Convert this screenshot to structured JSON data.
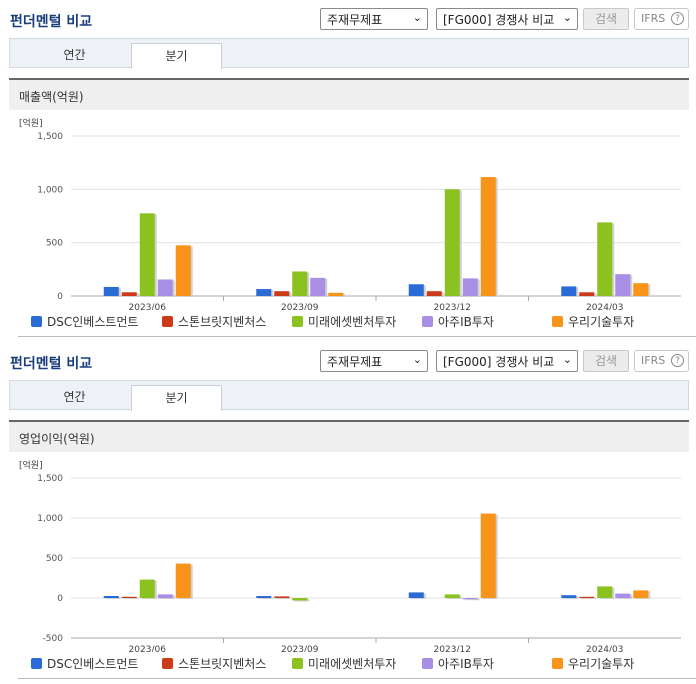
{
  "panels": [
    {
      "title": "펀더멘털 비교",
      "select1": "주재무제표",
      "select2": "[FG000] 경쟁사 비교",
      "search_label": "검색",
      "ifrs_label": "IFRS",
      "help_label": "?",
      "tabs": [
        "연간",
        "분기"
      ],
      "active_tab": "분기",
      "section_title": "매출액(억원)",
      "chart_data": {
        "type": "bar",
        "unit_label": "[억원]",
        "categories": [
          "2023/06",
          "2023/09",
          "2023/12",
          "2024/03"
        ],
        "ylim": [
          0,
          1500
        ],
        "yticks": [
          0,
          500,
          1000,
          1500
        ],
        "ytick_labels": [
          "0",
          "500",
          "1,000",
          "1,500"
        ],
        "grid": true,
        "legend_position": "bottom",
        "series": [
          {
            "name": "DSC인베스트먼트",
            "color": "#2b6bd6",
            "values": [
              85,
              65,
              110,
              90
            ]
          },
          {
            "name": "스톤브릿지벤처스",
            "color": "#cc3a1a",
            "values": [
              35,
              45,
              45,
              35
            ]
          },
          {
            "name": "미래에셋벤처투자",
            "color": "#8cc21f",
            "values": [
              775,
              230,
              1000,
              690
            ]
          },
          {
            "name": "아주IB투자",
            "color": "#a98ee6",
            "values": [
              155,
              170,
              165,
              205
            ]
          },
          {
            "name": "우리기술투자",
            "color": "#f79419",
            "values": [
              475,
              30,
              1115,
              120
            ]
          }
        ]
      }
    },
    {
      "title": "펀더멘털 비교",
      "select1": "주재무제표",
      "select2": "[FG000] 경쟁사 비교",
      "search_label": "검색",
      "ifrs_label": "IFRS",
      "help_label": "?",
      "tabs": [
        "연간",
        "분기"
      ],
      "active_tab": "분기",
      "section_title": "영업이익(억원)",
      "chart_data": {
        "type": "bar",
        "unit_label": "[억원]",
        "categories": [
          "2023/06",
          "2023/09",
          "2023/12",
          "2024/03"
        ],
        "ylim": [
          -500,
          1500
        ],
        "yticks": [
          -500,
          0,
          500,
          1000,
          1500
        ],
        "ytick_labels": [
          "-500",
          "0",
          "500",
          "1,000",
          "1,500"
        ],
        "grid": true,
        "legend_position": "bottom",
        "series": [
          {
            "name": "DSC인베스트먼트",
            "color": "#2b6bd6",
            "values": [
              25,
              25,
              70,
              35
            ]
          },
          {
            "name": "스톤브릿지벤처스",
            "color": "#cc3a1a",
            "values": [
              15,
              20,
              0,
              15
            ]
          },
          {
            "name": "미래에셋벤처투자",
            "color": "#8cc21f",
            "values": [
              230,
              -30,
              45,
              145
            ]
          },
          {
            "name": "아주IB투자",
            "color": "#a98ee6",
            "values": [
              45,
              0,
              -15,
              55
            ]
          },
          {
            "name": "우리기술투자",
            "color": "#f79419",
            "values": [
              430,
              0,
              1055,
              95
            ]
          }
        ]
      }
    }
  ]
}
